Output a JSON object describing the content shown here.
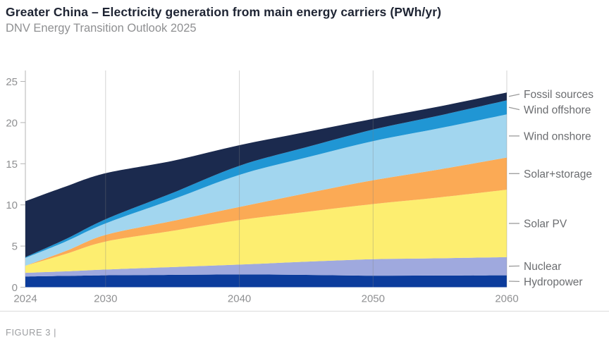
{
  "header": {
    "title": "Greater China – Electricity generation from main energy carriers (PWh/yr)",
    "subtitle": "DNV Energy Transition Outlook 2025"
  },
  "footer": {
    "figure_label": "FIGURE 3 |"
  },
  "chart_data": {
    "type": "area",
    "stacked": true,
    "title": "Greater China – Electricity generation from main energy carriers (PWh/yr)",
    "subtitle": "DNV Energy Transition Outlook 2025",
    "units": "PWh/yr",
    "x": [
      2024,
      2027,
      2030,
      2035,
      2040,
      2045,
      2050,
      2055,
      2060
    ],
    "xlim": [
      2024,
      2060
    ],
    "ylim": [
      0,
      25
    ],
    "x_ticks": [
      2024,
      2030,
      2040,
      2050,
      2060
    ],
    "y_ticks": [
      0,
      5,
      10,
      15,
      20,
      25
    ],
    "grid": "vertical-gridlines-only",
    "legend_position": "right",
    "legend_top_to_bottom": [
      "Fossil sources",
      "Wind offshore",
      "Wind onshore",
      "Solar+storage",
      "Solar PV",
      "Nuclear",
      "Hydropower"
    ],
    "series": [
      {
        "name": "Hydropower",
        "color": "#0c3c9c",
        "values": [
          1.3,
          1.38,
          1.45,
          1.5,
          1.55,
          1.5,
          1.4,
          1.42,
          1.45
        ]
      },
      {
        "name": "Nuclear",
        "color": "#9fa9de",
        "values": [
          0.45,
          0.55,
          0.7,
          0.95,
          1.2,
          1.6,
          2.0,
          2.1,
          2.2
        ]
      },
      {
        "name": "Solar PV",
        "color": "#fdee70",
        "values": [
          0.85,
          2.1,
          3.4,
          4.4,
          5.4,
          6.05,
          6.7,
          7.4,
          8.2
        ]
      },
      {
        "name": "Solar+storage",
        "color": "#fbaa55",
        "values": [
          0.0,
          0.35,
          0.8,
          1.2,
          1.6,
          2.25,
          2.9,
          3.4,
          3.9
        ]
      },
      {
        "name": "Wind onshore",
        "color": "#a2d6ef",
        "values": [
          0.95,
          1.15,
          1.4,
          2.6,
          3.9,
          4.35,
          4.75,
          5.0,
          5.25
        ]
      },
      {
        "name": "Wind offshore",
        "color": "#2096d4",
        "values": [
          0.1,
          0.3,
          0.5,
          0.8,
          1.1,
          1.25,
          1.4,
          1.55,
          1.7
        ]
      },
      {
        "name": "Fossil sources",
        "color": "#1b2a4e",
        "values": [
          6.8,
          6.4,
          5.6,
          3.9,
          2.5,
          1.85,
          1.3,
          1.1,
          0.95
        ]
      }
    ],
    "totals_by_x": [
      10.45,
      12.23,
      13.85,
      15.35,
      17.25,
      18.85,
      20.45,
      21.97,
      23.65
    ],
    "axis_color": "#b4b4b4",
    "grid_color": "#828282",
    "connector_color": "#9b9b9b"
  }
}
